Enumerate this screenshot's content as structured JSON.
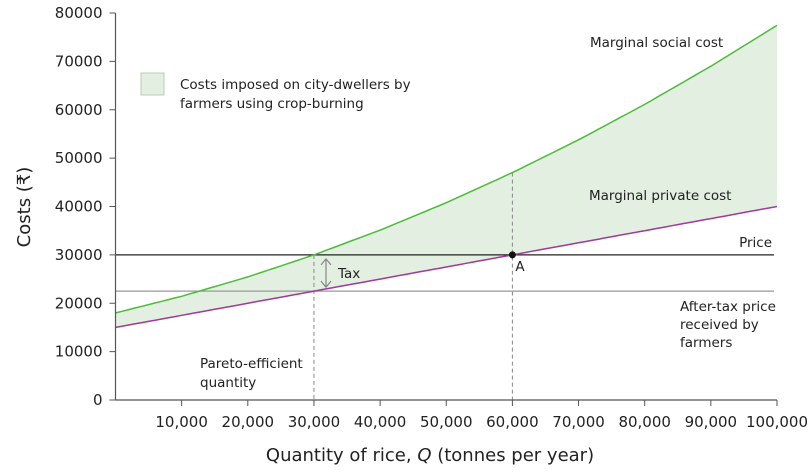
{
  "chart_data": {
    "type": "line",
    "xlabel": "Quantity of rice, Q (tonnes per year)",
    "xlabel_parts": {
      "pre": "Quantity of rice, ",
      "var": "Q",
      "post": " (tonnes per year)"
    },
    "ylabel": "Costs (₹)",
    "xlim": [
      0,
      100000
    ],
    "ylim": [
      0,
      80000
    ],
    "x_ticks": [
      10000,
      20000,
      30000,
      40000,
      50000,
      60000,
      70000,
      80000,
      90000,
      100000
    ],
    "x_tick_labels": [
      "10,000",
      "20,000",
      "30,000",
      "40,000",
      "50,000",
      "60,000",
      "70,000",
      "80,000",
      "90,000",
      "100,000"
    ],
    "y_ticks": [
      0,
      10000,
      20000,
      30000,
      40000,
      50000,
      60000,
      70000,
      80000
    ],
    "y_tick_labels": [
      "0",
      "10000",
      "20000",
      "30000",
      "40000",
      "50000",
      "60000",
      "70000",
      "80000"
    ],
    "grid": false,
    "series": [
      {
        "name": "Marginal social cost",
        "color": "#4dbb3a",
        "x": [
          0,
          10000,
          20000,
          30000,
          40000,
          50000,
          60000,
          70000,
          80000,
          90000,
          100000
        ],
        "y": [
          18000,
          21444,
          25444,
          30000,
          35111,
          40778,
          47000,
          53778,
          61111,
          69000,
          77444
        ]
      },
      {
        "name": "Marginal private cost",
        "color": "#a0399c",
        "x": [
          0,
          100000
        ],
        "y": [
          15000,
          40000
        ]
      }
    ],
    "horizontal_lines": [
      {
        "name": "Price",
        "y": 30000,
        "color": "#222222"
      },
      {
        "name": "After-tax price received by farmers",
        "name_lines": [
          "After-tax price",
          "received by",
          "farmers"
        ],
        "y": 22500,
        "color": "#999999"
      }
    ],
    "vertical_lines": [
      {
        "x": 30000,
        "label_lines": [
          "Pareto-efficient",
          "quantity"
        ]
      },
      {
        "x": 60000
      }
    ],
    "point": {
      "label": "A",
      "x": 60000,
      "y": 30000
    },
    "tax_label": "Tax",
    "shaded_area": {
      "legend": [
        "Costs imposed on city-dwellers by",
        "farmers using crop-burning"
      ],
      "color": "#e2efe1",
      "border": "#b9cdb8"
    }
  }
}
